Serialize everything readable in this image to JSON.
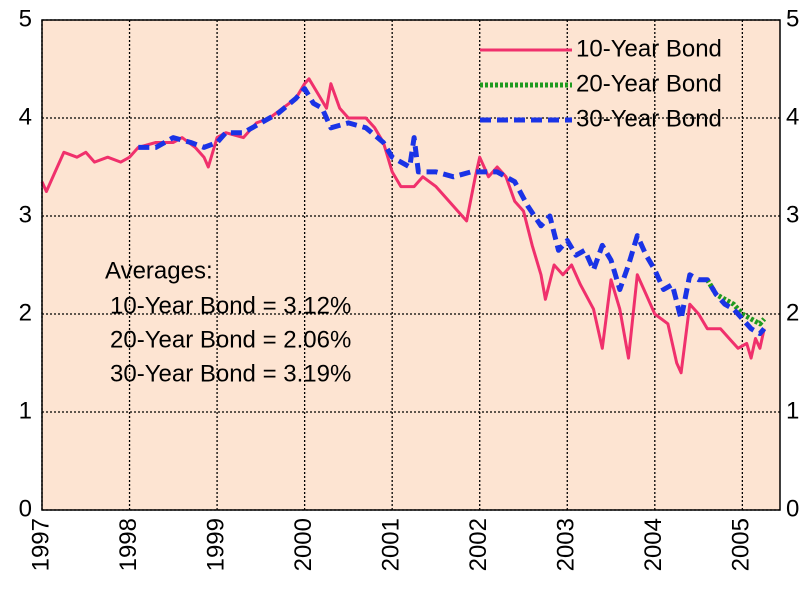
{
  "chart_data": {
    "type": "line",
    "xlim": [
      1997,
      2005.43
    ],
    "xticks": [
      1997,
      1998,
      1999,
      2000,
      2001,
      2002,
      2003,
      2004,
      2005
    ],
    "ylim": [
      0,
      5
    ],
    "yticks": [
      0,
      1,
      2,
      3,
      4,
      5
    ],
    "y2lim": [
      0,
      5
    ],
    "y2ticks": [
      0,
      1,
      2,
      3,
      4,
      5
    ],
    "grid": true,
    "legend": "upper right",
    "background": "#fde4d2",
    "series": [
      {
        "name": "10-Year Bond",
        "color": "#f0306c",
        "style": "solid",
        "x": [
          1997.0,
          1997.05,
          1997.15,
          1997.25,
          1997.4,
          1997.5,
          1997.6,
          1997.75,
          1997.9,
          1998.0,
          1998.1,
          1998.3,
          1998.5,
          1998.6,
          1998.75,
          1998.85,
          1998.9,
          1999.0,
          1999.1,
          1999.3,
          1999.45,
          1999.6,
          1999.75,
          1999.9,
          2000.0,
          2000.05,
          2000.15,
          2000.25,
          2000.3,
          2000.4,
          2000.5,
          2000.7,
          2000.8,
          2000.9,
          2001.0,
          2001.1,
          2001.25,
          2001.35,
          2001.5,
          2001.6,
          2001.75,
          2001.85,
          2001.95,
          2002.0,
          2002.1,
          2002.2,
          2002.3,
          2002.4,
          2002.5,
          2002.6,
          2002.7,
          2002.75,
          2002.85,
          2002.95,
          2003.05,
          2003.15,
          2003.3,
          2003.4,
          2003.5,
          2003.6,
          2003.7,
          2003.8,
          2003.9,
          2004.0,
          2004.15,
          2004.25,
          2004.3,
          2004.4,
          2004.5,
          2004.6,
          2004.75,
          2004.85,
          2004.95,
          2005.05,
          2005.1,
          2005.15,
          2005.2,
          2005.25
        ],
        "values": [
          3.35,
          3.25,
          3.45,
          3.65,
          3.6,
          3.65,
          3.55,
          3.6,
          3.55,
          3.6,
          3.7,
          3.75,
          3.75,
          3.8,
          3.7,
          3.6,
          3.5,
          3.8,
          3.85,
          3.8,
          3.95,
          4.0,
          4.1,
          4.2,
          4.35,
          4.4,
          4.25,
          4.1,
          4.35,
          4.1,
          4.0,
          4.0,
          3.9,
          3.75,
          3.45,
          3.3,
          3.3,
          3.4,
          3.3,
          3.2,
          3.05,
          2.95,
          3.4,
          3.6,
          3.4,
          3.5,
          3.4,
          3.15,
          3.05,
          2.7,
          2.4,
          2.15,
          2.5,
          2.4,
          2.5,
          2.3,
          2.05,
          1.65,
          2.35,
          2.05,
          1.55,
          2.4,
          2.2,
          2.0,
          1.9,
          1.5,
          1.4,
          2.1,
          2.0,
          1.85,
          1.85,
          1.75,
          1.65,
          1.7,
          1.55,
          1.75,
          1.65,
          1.85
        ]
      },
      {
        "name": "20-Year Bond",
        "color": "#1f9a1f",
        "style": "dotted",
        "x": [
          2004.6,
          2004.7,
          2004.8,
          2004.9,
          2005.0,
          2005.1,
          2005.2,
          2005.25
        ],
        "values": [
          2.35,
          2.2,
          2.15,
          2.1,
          2.0,
          1.95,
          1.9,
          1.95
        ]
      },
      {
        "name": "30-Year Bond",
        "color": "#1a33e6",
        "style": "dashed",
        "x": [
          1998.1,
          1998.3,
          1998.5,
          1998.7,
          1998.85,
          1999.0,
          1999.1,
          1999.3,
          1999.5,
          1999.7,
          1999.9,
          2000.0,
          2000.1,
          2000.2,
          2000.3,
          2000.5,
          2000.7,
          2000.9,
          2001.0,
          2001.1,
          2001.2,
          2001.25,
          2001.3,
          2001.5,
          2001.7,
          2001.9,
          2002.0,
          2002.2,
          2002.4,
          2002.55,
          2002.7,
          2002.8,
          2002.9,
          2003.0,
          2003.1,
          2003.2,
          2003.3,
          2003.4,
          2003.5,
          2003.6,
          2003.7,
          2003.8,
          2003.9,
          2004.0,
          2004.1,
          2004.2,
          2004.3,
          2004.4,
          2004.5,
          2004.6,
          2004.7,
          2004.8,
          2004.9,
          2005.0,
          2005.1,
          2005.2,
          2005.25
        ],
        "values": [
          3.7,
          3.7,
          3.8,
          3.75,
          3.7,
          3.75,
          3.85,
          3.85,
          3.95,
          4.05,
          4.2,
          4.3,
          4.15,
          4.1,
          3.9,
          3.95,
          3.9,
          3.75,
          3.6,
          3.55,
          3.5,
          3.8,
          3.45,
          3.45,
          3.4,
          3.45,
          3.45,
          3.45,
          3.35,
          3.1,
          2.9,
          3.0,
          2.65,
          2.75,
          2.6,
          2.65,
          2.45,
          2.7,
          2.55,
          2.25,
          2.5,
          2.8,
          2.6,
          2.45,
          2.25,
          2.3,
          1.95,
          2.4,
          2.35,
          2.35,
          2.2,
          2.1,
          2.05,
          1.95,
          1.85,
          1.8,
          1.85
        ]
      }
    ],
    "annotations": [
      "Averages:",
      "10-Year Bond = 3.12%",
      "20-Year Bond = 2.06%",
      "30-Year Bond = 3.19%"
    ]
  }
}
